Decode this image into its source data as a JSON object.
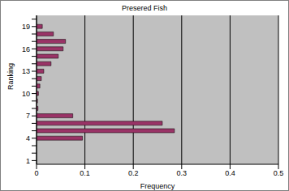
{
  "chart_data": {
    "type": "bar",
    "orientation": "horizontal",
    "title": "Presered Fish",
    "x_label": "Frequency",
    "y_label": "Ranking",
    "categories": [
      "1",
      null,
      null,
      "4",
      null,
      null,
      "7",
      null,
      null,
      "10",
      null,
      null,
      "13",
      null,
      null,
      "16",
      null,
      null,
      "19",
      null
    ],
    "values": [
      0,
      0,
      0,
      0.095,
      0.285,
      0.26,
      0.075,
      0.003,
      0.002,
      0.004,
      0.007,
      0.01,
      0.015,
      0.03,
      0.045,
      0.055,
      0.06,
      0.035,
      0.012,
      0
    ],
    "color": "#993366",
    "xlim": [
      0,
      0.5
    ],
    "xticks": [
      0,
      0.1,
      0.2,
      0.3,
      0.4,
      0.5
    ],
    "grid": true
  }
}
